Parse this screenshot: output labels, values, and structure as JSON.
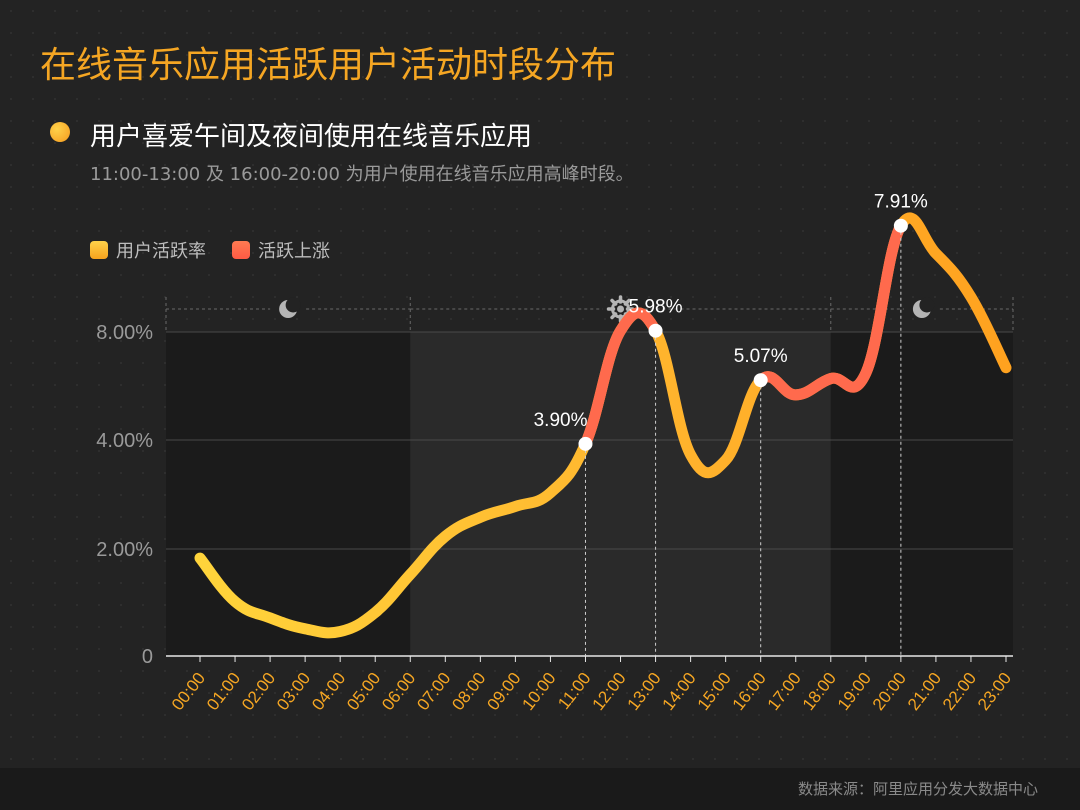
{
  "title": "在线音乐应用活跃用户活动时段分布",
  "subtitle": "用户喜爱午间及夜间使用在线音乐应用",
  "description": "11:00-13:00 及 16:00-20:00 为用户使用在线音乐应用高峰时段。",
  "legend": [
    {
      "label": "用户活跃率",
      "color": "#ffc53d"
    },
    {
      "label": "活跃上涨",
      "color": "#ff6a4d"
    }
  ],
  "source": "数据来源：阿里应用分发大数据中心",
  "icons": {
    "night": "moon-icon",
    "day": "sun-gear-icon"
  },
  "colors": {
    "title": "#f5a623",
    "line_base": "#ffc53d",
    "line_rise": "#ff6a4d",
    "tick": "#f5a623"
  },
  "chart_data": {
    "type": "line",
    "categories": [
      "00:00",
      "01:00",
      "02:00",
      "03:00",
      "04:00",
      "05:00",
      "06:00",
      "07:00",
      "08:00",
      "09:00",
      "10:00",
      "11:00",
      "12:00",
      "13:00",
      "14:00",
      "15:00",
      "16:00",
      "17:00",
      "18:00",
      "19:00",
      "20:00",
      "21:00",
      "22:00",
      "23:00"
    ],
    "series": [
      {
        "name": "用户活跃率",
        "values": [
          1.8,
          1.0,
          0.7,
          0.5,
          0.45,
          0.8,
          1.5,
          2.2,
          2.55,
          2.75,
          3.0,
          3.9,
          5.98,
          5.98,
          3.7,
          3.6,
          5.07,
          4.8,
          5.1,
          5.2,
          7.91,
          7.4,
          6.6,
          5.3
        ]
      }
    ],
    "yticks": [
      "0",
      "2.00%",
      "4.00%",
      "8.00%"
    ],
    "annotations": [
      {
        "x": "11:00",
        "label": "3.90%"
      },
      {
        "x": "13:00",
        "label": "5.98%"
      },
      {
        "x": "16:00",
        "label": "5.07%"
      },
      {
        "x": "20:00",
        "label": "7.91%"
      }
    ],
    "rise_segments": [
      [
        "11:00",
        "13:00"
      ],
      [
        "16:00",
        "20:00"
      ]
    ],
    "periods": [
      {
        "from": "00:00",
        "to": "06:00",
        "icon": "moon-icon"
      },
      {
        "from": "06:00",
        "to": "18:00",
        "icon": "sun-gear-icon"
      },
      {
        "from": "18:00",
        "to": "23:00",
        "icon": "moon-icon"
      }
    ],
    "grid": true
  }
}
